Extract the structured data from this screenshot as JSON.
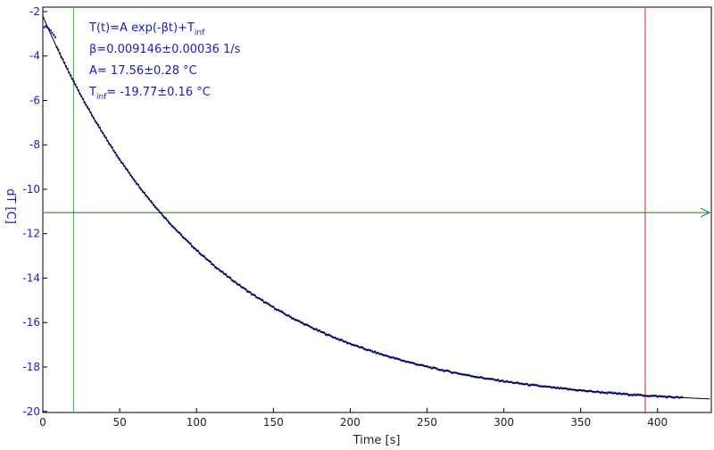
{
  "chart_data": {
    "type": "scatter",
    "xlabel": "Time [s]",
    "ylabel": "dT [C]",
    "xlim": [
      0,
      435
    ],
    "ylim": [
      -20.05,
      -1.8
    ],
    "x_ticks": [
      0,
      50,
      100,
      150,
      200,
      250,
      300,
      350,
      400
    ],
    "y_ticks": [
      -2,
      -4,
      -6,
      -8,
      -10,
      -12,
      -14,
      -16,
      -18,
      -20
    ],
    "grid": false,
    "fit": {
      "model": "exponential",
      "A": 17.56,
      "beta": 0.009146,
      "T_inf": -19.77,
      "x_range": [
        0,
        435
      ]
    },
    "annotations": [
      {
        "name": "formula",
        "main": "T(t)=A exp(-βt)+T",
        "sub": "inf"
      },
      {
        "name": "beta",
        "main": "β=0.009146±0.00036 1/s",
        "sub": ""
      },
      {
        "name": "amplitude",
        "main": "A= 17.56±0.28 °C",
        "sub": ""
      },
      {
        "name": "tinf",
        "main": "T",
        "sub": "inf",
        "tail": "= -19.77±0.16 °C"
      }
    ],
    "cursors": {
      "green_vertical_x": 20,
      "red_vertical_x": 392,
      "horizontal_y": -11.05
    },
    "series": [
      {
        "color": "#1a1acc",
        "x_start": 1,
        "x_end": 416,
        "x_step": 1,
        "early_points": [
          [
            1,
            -2.7
          ],
          [
            2,
            -2.65
          ],
          [
            3,
            -2.72
          ],
          [
            4,
            -2.78
          ],
          [
            5,
            -2.85
          ],
          [
            6,
            -2.95
          ],
          [
            7,
            -3.05
          ],
          [
            8,
            -3.15
          ]
        ]
      }
    ],
    "colors": {
      "data": "#1a1acc",
      "fit": "#000000",
      "green_cursor": "#22cc22",
      "red_cursor": "#dd2222",
      "horizontal_cursor": "#1a7a1a",
      "y_axis_text": "#1a1acc"
    }
  }
}
